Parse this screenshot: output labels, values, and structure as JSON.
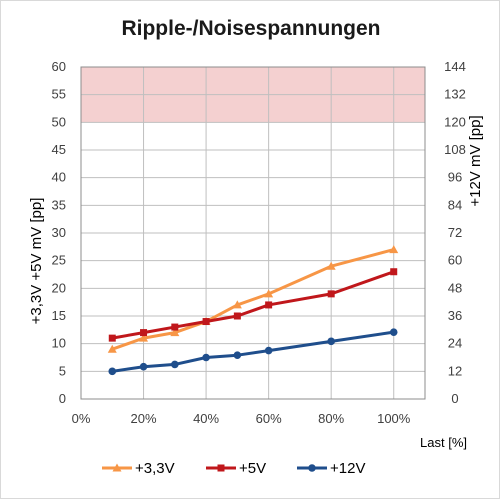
{
  "chart_data": {
    "type": "line",
    "title": "Ripple-/Noisespannungen",
    "xlabel": "Last [%]",
    "ylabel_left": "+3,3V +5V     mV [pp]",
    "ylabel_right": "+12V     mV [pp]",
    "x_ticks": [
      "0%",
      "20%",
      "40%",
      "60%",
      "80%",
      "100%"
    ],
    "xlim": [
      0,
      110
    ],
    "ylim_left": [
      0,
      60
    ],
    "ylim_right": [
      0,
      144
    ],
    "y_ticks_left": [
      "0",
      "5",
      "10",
      "15",
      "20",
      "25",
      "30",
      "35",
      "40",
      "45",
      "50",
      "55",
      "60"
    ],
    "y_ticks_right": [
      "0",
      "12",
      "24",
      "36",
      "48",
      "60",
      "72",
      "84",
      "96",
      "108",
      "120",
      "132",
      "144"
    ],
    "limit_band": {
      "from": 50,
      "to": 60,
      "color": "#f4d0d0"
    },
    "grid": true,
    "legend_position": "bottom",
    "series": [
      {
        "name": "+3,3V",
        "axis": "left",
        "color": "#f79646",
        "marker": "triangle",
        "x": [
          10,
          20,
          30,
          40,
          50,
          60,
          80,
          100
        ],
        "values": [
          9,
          11,
          12,
          14,
          17,
          19,
          24,
          27
        ]
      },
      {
        "name": "+5V",
        "axis": "left",
        "color": "#c0171b",
        "marker": "square",
        "x": [
          10,
          20,
          30,
          40,
          50,
          60,
          80,
          100
        ],
        "values": [
          11,
          12,
          13,
          14,
          15,
          17,
          19,
          23
        ]
      },
      {
        "name": "+12V",
        "axis": "right",
        "color": "#1f4e8c",
        "marker": "circle",
        "x": [
          10,
          20,
          30,
          40,
          50,
          60,
          80,
          100
        ],
        "values": [
          12,
          14,
          15,
          18,
          19,
          21,
          25,
          29
        ]
      }
    ]
  }
}
